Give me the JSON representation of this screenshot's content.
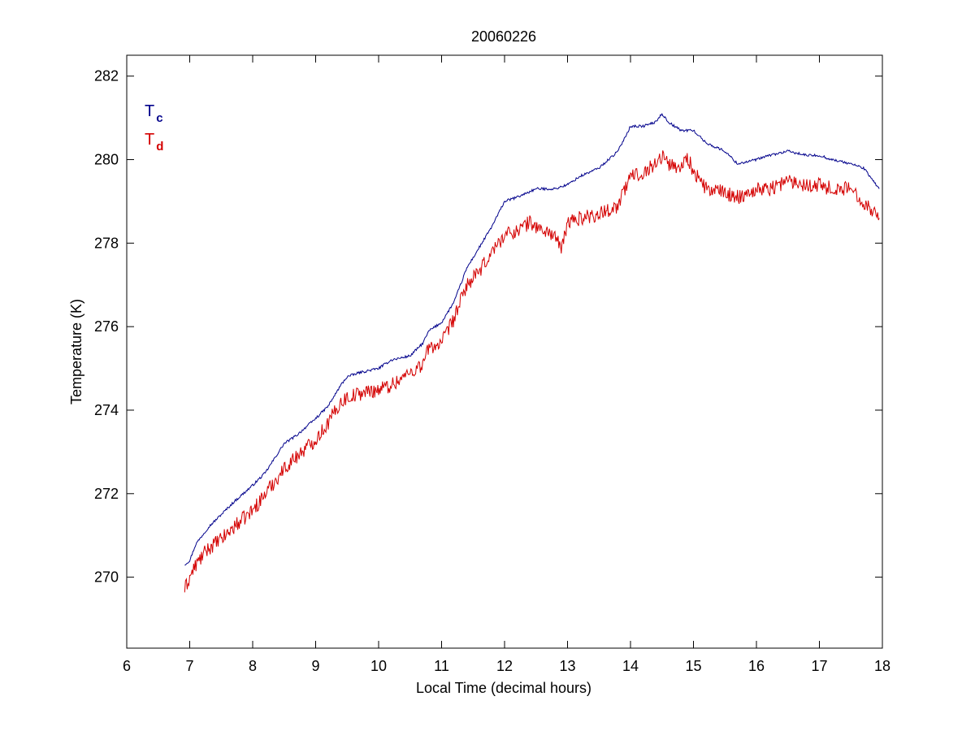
{
  "chart_data": {
    "type": "line",
    "title": "20060226",
    "xlabel": "Local Time (decimal hours)",
    "ylabel": "Temperature (K)",
    "xlim": [
      6,
      18
    ],
    "ylim": [
      268.3,
      282.5
    ],
    "x_ticks": [
      6,
      7,
      8,
      9,
      10,
      11,
      12,
      13,
      14,
      15,
      16,
      17,
      18
    ],
    "x_tick_labels": [
      "6",
      "7",
      "8",
      "9",
      "10",
      "11",
      "12",
      "13",
      "14",
      "15",
      "16",
      "17",
      "18"
    ],
    "y_ticks": [
      270,
      272,
      274,
      276,
      278,
      280,
      282
    ],
    "y_tick_labels": [
      "270",
      "272",
      "274",
      "276",
      "278",
      "280",
      "282"
    ],
    "grid": false,
    "legend_position": "top-left",
    "series": [
      {
        "name": "Tc",
        "legend_main": "T",
        "legend_sub": "c",
        "color": "#00008b",
        "noise": 0.03,
        "x": [
          6.92,
          7.0,
          7.1,
          7.2,
          7.3,
          7.5,
          7.7,
          8.0,
          8.2,
          8.5,
          8.7,
          9.0,
          9.2,
          9.4,
          9.5,
          9.7,
          10.0,
          10.2,
          10.5,
          10.7,
          10.8,
          11.0,
          11.2,
          11.4,
          11.6,
          11.8,
          12.0,
          12.2,
          12.5,
          12.8,
          13.0,
          13.2,
          13.5,
          13.8,
          14.0,
          14.2,
          14.4,
          14.5,
          14.6,
          14.8,
          15.0,
          15.2,
          15.5,
          15.7,
          16.0,
          16.2,
          16.5,
          16.8,
          17.0,
          17.2,
          17.5,
          17.7,
          17.95
        ],
        "y": [
          270.3,
          270.4,
          270.8,
          271.0,
          271.2,
          271.5,
          271.8,
          272.2,
          272.5,
          273.2,
          273.4,
          273.8,
          274.1,
          274.6,
          274.8,
          274.9,
          275.0,
          275.2,
          275.3,
          275.6,
          275.9,
          276.1,
          276.6,
          277.4,
          277.9,
          278.4,
          279.0,
          279.1,
          279.3,
          279.3,
          279.4,
          279.6,
          279.8,
          280.2,
          280.8,
          280.8,
          280.9,
          281.1,
          280.9,
          280.7,
          280.7,
          280.4,
          280.2,
          279.9,
          280.0,
          280.1,
          280.2,
          280.1,
          280.1,
          280.0,
          279.9,
          279.8,
          279.3
        ]
      },
      {
        "name": "Td",
        "legend_main": "T",
        "legend_sub": "d",
        "color": "#d40000",
        "noise": 0.18,
        "x": [
          6.92,
          7.0,
          7.1,
          7.2,
          7.3,
          7.5,
          7.7,
          8.0,
          8.2,
          8.5,
          8.7,
          9.0,
          9.2,
          9.4,
          9.5,
          9.7,
          10.0,
          10.2,
          10.5,
          10.7,
          10.8,
          11.0,
          11.2,
          11.4,
          11.6,
          11.8,
          12.0,
          12.2,
          12.4,
          12.6,
          12.8,
          12.9,
          13.0,
          13.2,
          13.5,
          13.8,
          14.0,
          14.2,
          14.4,
          14.5,
          14.6,
          14.8,
          14.9,
          15.0,
          15.2,
          15.5,
          15.7,
          16.0,
          16.2,
          16.5,
          16.8,
          17.0,
          17.2,
          17.5,
          17.7,
          17.95
        ],
        "y": [
          269.7,
          270.0,
          270.3,
          270.5,
          270.7,
          270.9,
          271.2,
          271.6,
          272.0,
          272.6,
          272.9,
          273.3,
          273.7,
          274.2,
          274.3,
          274.4,
          274.5,
          274.6,
          274.9,
          275.1,
          275.5,
          275.6,
          276.2,
          277.0,
          277.3,
          277.8,
          278.2,
          278.3,
          278.5,
          278.3,
          278.2,
          277.8,
          278.5,
          278.6,
          278.7,
          278.9,
          279.6,
          279.7,
          279.9,
          280.1,
          279.9,
          279.8,
          280.1,
          279.7,
          279.3,
          279.2,
          279.1,
          279.3,
          279.3,
          279.5,
          279.4,
          279.4,
          279.3,
          279.3,
          279.0,
          278.6
        ]
      }
    ]
  }
}
